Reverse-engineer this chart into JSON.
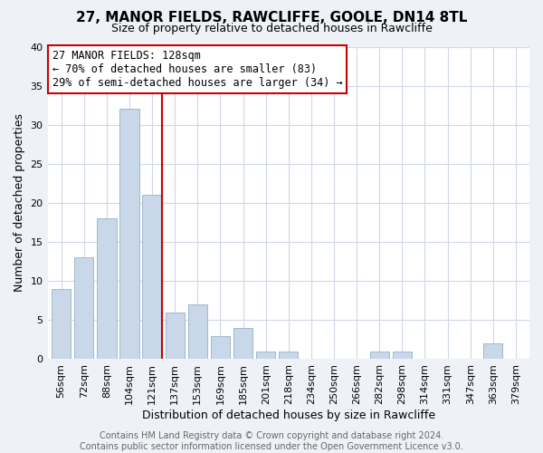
{
  "title": "27, MANOR FIELDS, RAWCLIFFE, GOOLE, DN14 8TL",
  "subtitle": "Size of property relative to detached houses in Rawcliffe",
  "xlabel": "Distribution of detached houses by size in Rawcliffe",
  "ylabel": "Number of detached properties",
  "footer_line1": "Contains HM Land Registry data © Crown copyright and database right 2024.",
  "footer_line2": "Contains public sector information licensed under the Open Government Licence v3.0.",
  "bin_labels": [
    "56sqm",
    "72sqm",
    "88sqm",
    "104sqm",
    "121sqm",
    "137sqm",
    "153sqm",
    "169sqm",
    "185sqm",
    "201sqm",
    "218sqm",
    "234sqm",
    "250sqm",
    "266sqm",
    "282sqm",
    "298sqm",
    "314sqm",
    "331sqm",
    "347sqm",
    "363sqm",
    "379sqm"
  ],
  "bar_values": [
    9,
    13,
    18,
    32,
    21,
    6,
    7,
    3,
    4,
    1,
    1,
    0,
    0,
    0,
    1,
    1,
    0,
    0,
    0,
    2,
    0
  ],
  "bar_color": "#c8d8e8",
  "bar_edge_color": "#a0b8d0",
  "vline_color": "#cc0000",
  "annotation_text_line1": "27 MANOR FIELDS: 128sqm",
  "annotation_text_line2": "← 70% of detached houses are smaller (83)",
  "annotation_text_line3": "29% of semi-detached houses are larger (34) →",
  "ylim": [
    0,
    40
  ],
  "yticks": [
    0,
    5,
    10,
    15,
    20,
    25,
    30,
    35,
    40
  ],
  "bg_color": "#eef2f7",
  "plot_bg_color": "#ffffff",
  "grid_color": "#d0d8e8",
  "title_fontsize": 11,
  "subtitle_fontsize": 9,
  "xlabel_fontsize": 9,
  "ylabel_fontsize": 9,
  "tick_fontsize": 8,
  "annot_fontsize": 8.5,
  "footer_fontsize": 7,
  "footer_color": "#666666"
}
